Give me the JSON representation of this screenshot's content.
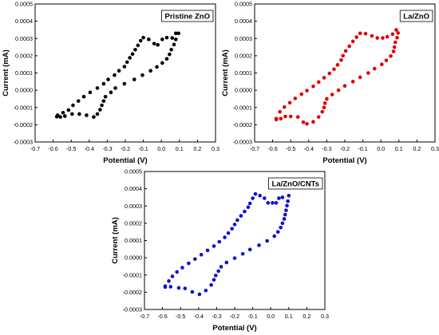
{
  "chart_data": [
    {
      "type": "scatter",
      "title": "Pristine ZnO",
      "xlabel": "Potential (V)",
      "ylabel": "Current (mA)",
      "xlim": [
        -0.7,
        0.3
      ],
      "ylim": [
        -0.0003,
        0.0005
      ],
      "xticks": [
        "-0.7",
        "-0.6",
        "-0.5",
        "-0.4",
        "-0.3",
        "-0.2",
        "-0.1",
        "0.0",
        "0.1",
        "0.2",
        "0.3"
      ],
      "yticks": [
        "-0.0003",
        "-0.0002",
        "-0.0001",
        "0.0000",
        "0.0001",
        "0.0002",
        "0.0003",
        "0.0004",
        "0.0005"
      ],
      "color": "#000000",
      "grid": false,
      "points": [
        [
          -0.575,
          -0.000145
        ],
        [
          -0.545,
          -0.00013
        ],
        [
          -0.515,
          -0.000115
        ],
        [
          -0.49,
          -8.75e-05
        ],
        [
          -0.46,
          -6.25e-05
        ],
        [
          -0.43,
          -3.75e-05
        ],
        [
          -0.395,
          -1.25e-05
        ],
        [
          -0.355,
          1.25e-05
        ],
        [
          -0.32,
          3.75e-05
        ],
        [
          -0.295,
          6.25e-05
        ],
        [
          -0.26,
          8.75e-05
        ],
        [
          -0.235,
          0.000113
        ],
        [
          -0.205,
          0.000137
        ],
        [
          -0.19,
          0.000163
        ],
        [
          -0.175,
          0.000188
        ],
        [
          -0.16,
          0.00021
        ],
        [
          -0.145,
          0.000235
        ],
        [
          -0.13,
          0.00026
        ],
        [
          -0.115,
          0.000287
        ],
        [
          -0.1,
          0.000305
        ],
        [
          -0.07,
          0.000295
        ],
        [
          -0.04,
          0.00027
        ],
        [
          -0.02,
          0.000263
        ],
        [
          0.005,
          0.000295
        ],
        [
          0.03,
          0.000305
        ],
        [
          0.06,
          0.000303
        ],
        [
          0.08,
          0.00033
        ],
        [
          0.095,
          0.00033
        ],
        [
          0.08,
          0.000295
        ],
        [
          0.07,
          0.000265
        ],
        [
          0.055,
          0.000235
        ],
        [
          0.045,
          0.000208
        ],
        [
          0.03,
          0.000182
        ],
        [
          0.005,
          0.000158
        ],
        [
          -0.025,
          0.000135
        ],
        [
          -0.06,
          0.000113
        ],
        [
          -0.105,
          8.75e-05
        ],
        [
          -0.15,
          6.25e-05
        ],
        [
          -0.205,
          3.75e-05
        ],
        [
          -0.255,
          1.25e-05
        ],
        [
          -0.28,
          -1.25e-05
        ],
        [
          -0.31,
          -3.75e-05
        ],
        [
          -0.32,
          -6.25e-05
        ],
        [
          -0.33,
          -8.75e-05
        ],
        [
          -0.34,
          -0.000113
        ],
        [
          -0.355,
          -0.000138
        ],
        [
          -0.375,
          -0.000155
        ],
        [
          -0.415,
          -0.000145
        ],
        [
          -0.455,
          -0.000138
        ],
        [
          -0.495,
          -0.000138
        ],
        [
          -0.535,
          -0.00015
        ],
        [
          -0.56,
          -0.000155
        ],
        [
          -0.58,
          -0.000153
        ]
      ]
    },
    {
      "type": "scatter",
      "title": "La/ZnO",
      "xlabel": "Potential (V)",
      "ylabel": "Current (mA)",
      "xlim": [
        -0.7,
        0.3
      ],
      "ylim": [
        -0.0003,
        0.0005
      ],
      "xticks": [
        "-0.7",
        "-0.6",
        "-0.5",
        "-0.4",
        "-0.3",
        "-0.2",
        "-0.1",
        "0.0",
        "0.1",
        "0.2",
        "0.3"
      ],
      "yticks": [
        "-0.0003",
        "-0.0002",
        "-0.0001",
        "0.0000",
        "0.0001",
        "0.0002",
        "0.0003",
        "0.0004",
        "0.0005"
      ],
      "color": "#e00000",
      "grid": false,
      "points": [
        [
          -0.58,
          -0.000165
        ],
        [
          -0.56,
          -0.000125
        ],
        [
          -0.535,
          -9.75e-05
        ],
        [
          -0.505,
          -7.25e-05
        ],
        [
          -0.475,
          -4.75e-05
        ],
        [
          -0.44,
          -2.25e-05
        ],
        [
          -0.41,
          -2.5e-06
        ],
        [
          -0.375,
          2.25e-05
        ],
        [
          -0.345,
          4.75e-05
        ],
        [
          -0.315,
          7.25e-05
        ],
        [
          -0.285,
          9.75e-05
        ],
        [
          -0.26,
          0.000122
        ],
        [
          -0.24,
          0.000147
        ],
        [
          -0.22,
          0.000175
        ],
        [
          -0.21,
          0.0002
        ],
        [
          -0.195,
          0.000228
        ],
        [
          -0.175,
          0.000255
        ],
        [
          -0.155,
          0.000283
        ],
        [
          -0.135,
          0.000308
        ],
        [
          -0.115,
          0.00033
        ],
        [
          -0.085,
          0.000328
        ],
        [
          -0.05,
          0.000315
        ],
        [
          -0.02,
          0.000303
        ],
        [
          0.01,
          0.000303
        ],
        [
          0.035,
          0.00031
        ],
        [
          0.065,
          0.000325
        ],
        [
          0.085,
          0.00035
        ],
        [
          0.095,
          0.000332
        ],
        [
          0.09,
          0.000305
        ],
        [
          0.08,
          0.000278
        ],
        [
          0.075,
          0.00025
        ],
        [
          0.07,
          0.000225
        ],
        [
          0.055,
          0.000198
        ],
        [
          0.03,
          0.000173
        ],
        [
          0.005,
          0.00015
        ],
        [
          -0.035,
          0.000125
        ],
        [
          -0.07,
          0.0001
        ],
        [
          -0.115,
          7.5e-05
        ],
        [
          -0.155,
          5e-05
        ],
        [
          -0.2,
          2.5e-05
        ],
        [
          -0.235,
          0.0
        ],
        [
          -0.27,
          -2.5e-05
        ],
        [
          -0.3,
          -5e-05
        ],
        [
          -0.31,
          -7.5e-05
        ],
        [
          -0.315,
          -0.0001
        ],
        [
          -0.325,
          -0.000125
        ],
        [
          -0.345,
          -0.000155
        ],
        [
          -0.375,
          -0.000183
        ],
        [
          -0.41,
          -0.000195
        ],
        [
          -0.43,
          -0.000185
        ],
        [
          -0.46,
          -0.000155
        ],
        [
          -0.5,
          -0.000152
        ],
        [
          -0.53,
          -0.000152
        ],
        [
          -0.555,
          -0.000165
        ],
        [
          -0.58,
          -0.00017
        ]
      ]
    },
    {
      "type": "scatter",
      "title": "La/ZnO/CNTs",
      "xlabel": "Potential (V)",
      "ylabel": "Current (mA)",
      "xlim": [
        -0.7,
        0.3
      ],
      "ylim": [
        -0.0003,
        0.0005
      ],
      "xticks": [
        "-0.7",
        "-0.6",
        "-0.5",
        "-0.4",
        "-0.3",
        "-0.2",
        "-0.1",
        "0.0",
        "0.1",
        "0.2",
        "0.3"
      ],
      "yticks": [
        "-0.0003",
        "-0.0002",
        "-0.0001",
        "0.0000",
        "0.0001",
        "0.0002",
        "0.0003",
        "0.0004",
        "0.0005"
      ],
      "color": "#1010d0",
      "grid": false,
      "points": [
        [
          -0.585,
          -0.000165
        ],
        [
          -0.565,
          -0.000135
        ],
        [
          -0.545,
          -0.000108
        ],
        [
          -0.52,
          -8.25e-05
        ],
        [
          -0.49,
          -5.75e-05
        ],
        [
          -0.455,
          -3.25e-05
        ],
        [
          -0.42,
          -7.5e-06
        ],
        [
          -0.385,
          1.75e-05
        ],
        [
          -0.35,
          4.25e-05
        ],
        [
          -0.315,
          6.75e-05
        ],
        [
          -0.285,
          9.25e-05
        ],
        [
          -0.255,
          0.000118
        ],
        [
          -0.235,
          0.000143
        ],
        [
          -0.215,
          0.000168
        ],
        [
          -0.2,
          0.000193
        ],
        [
          -0.185,
          0.000218
        ],
        [
          -0.165,
          0.000243
        ],
        [
          -0.145,
          0.000268
        ],
        [
          -0.125,
          0.000293
        ],
        [
          -0.115,
          0.000315
        ],
        [
          -0.1,
          0.000345
        ],
        [
          -0.085,
          0.00037
        ],
        [
          -0.06,
          0.00036
        ],
        [
          -0.035,
          0.000345
        ],
        [
          -0.015,
          0.000318
        ],
        [
          0.01,
          0.000318
        ],
        [
          0.03,
          0.000318
        ],
        [
          0.045,
          0.000345
        ],
        [
          0.065,
          0.00035
        ],
        [
          0.1,
          0.00036
        ],
        [
          0.095,
          0.000328
        ],
        [
          0.09,
          0.000302
        ],
        [
          0.085,
          0.000275
        ],
        [
          0.08,
          0.00025
        ],
        [
          0.075,
          0.000225
        ],
        [
          0.065,
          0.0002
        ],
        [
          0.055,
          0.000175
        ],
        [
          0.04,
          0.00015
        ],
        [
          0.02,
          0.000125
        ],
        [
          -0.02,
          9.75e-05
        ],
        [
          -0.065,
          7.25e-05
        ],
        [
          -0.115,
          4.75e-05
        ],
        [
          -0.155,
          2.25e-05
        ],
        [
          -0.2,
          -2.5e-06
        ],
        [
          -0.245,
          -2.75e-05
        ],
        [
          -0.275,
          -5.25e-05
        ],
        [
          -0.29,
          -7.75e-05
        ],
        [
          -0.305,
          -0.000103
        ],
        [
          -0.315,
          -0.000128
        ],
        [
          -0.33,
          -0.000158
        ],
        [
          -0.36,
          -0.00019
        ],
        [
          -0.395,
          -0.000212
        ],
        [
          -0.435,
          -0.000198
        ],
        [
          -0.475,
          -0.000178
        ],
        [
          -0.51,
          -0.000175
        ],
        [
          -0.555,
          -0.000168
        ],
        [
          -0.585,
          -0.00017
        ]
      ]
    }
  ]
}
